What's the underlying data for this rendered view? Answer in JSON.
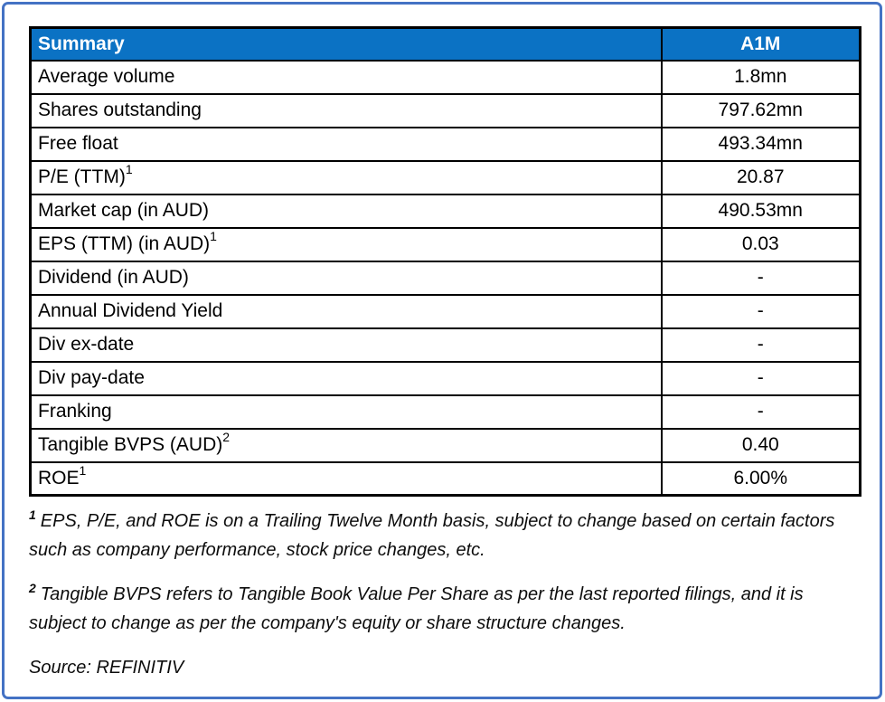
{
  "table": {
    "header": {
      "title": "Summary",
      "ticker": "A1M"
    },
    "rows": [
      {
        "label": "Average volume",
        "sup": "",
        "value": "1.8mn"
      },
      {
        "label": "Shares outstanding",
        "sup": "",
        "value": "797.62mn"
      },
      {
        "label": "Free float",
        "sup": "",
        "value": "493.34mn"
      },
      {
        "label": "P/E (TTM)",
        "sup": "1",
        "value": "20.87"
      },
      {
        "label": "Market cap (in AUD)",
        "sup": "",
        "value": "490.53mn"
      },
      {
        "label": "EPS (TTM) (in AUD)",
        "sup": "1",
        "value": "0.03"
      },
      {
        "label": "Dividend (in AUD)",
        "sup": "",
        "value": "-"
      },
      {
        "label": "Annual Dividend Yield",
        "sup": "",
        "value": "-"
      },
      {
        "label": "Div ex-date",
        "sup": "",
        "value": "-"
      },
      {
        "label": "Div pay-date",
        "sup": "",
        "value": "-"
      },
      {
        "label": "Franking",
        "sup": "",
        "value": "-"
      },
      {
        "label": "Tangible BVPS (AUD)",
        "sup": "2",
        "value": "0.40"
      },
      {
        "label": "ROE",
        "sup": "1",
        "value": "6.00%"
      }
    ]
  },
  "footnotes": [
    {
      "sup": "1",
      "text": "EPS, P/E, and ROE is on a Trailing Twelve Month basis, subject to change based on certain factors such as company performance, stock price changes, etc."
    },
    {
      "sup": "2",
      "text": "Tangible BVPS refers to Tangible Book Value Per Share as per the last reported filings, and it is subject to change as per the company's equity or share structure changes."
    }
  ],
  "source": "Source: REFINITIV",
  "colors": {
    "header_bg": "#0b72c4",
    "header_text": "#ffffff",
    "frame_border": "#4472c4",
    "cell_border": "#000000"
  }
}
